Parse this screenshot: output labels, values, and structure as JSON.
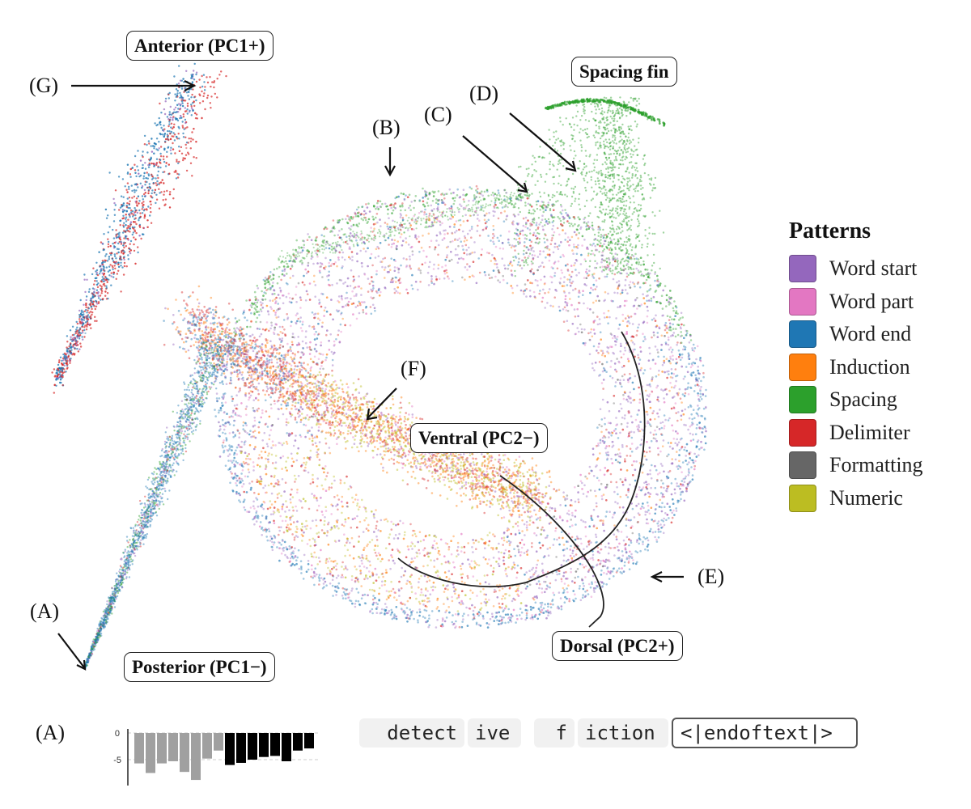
{
  "labels": {
    "anterior": "Anterior (PC1+)",
    "posterior": "Posterior (PC1−)",
    "spacing_fin": "Spacing fin",
    "ventral": "Ventral (PC2−)",
    "dorsal": "Dorsal (PC2+)"
  },
  "letters": {
    "A": "(A)",
    "B": "(B)",
    "C": "(C)",
    "D": "(D)",
    "E": "(E)",
    "F": "(F)",
    "G": "(G)",
    "panel_A": "(A)"
  },
  "legend": {
    "title": "Patterns",
    "items": [
      {
        "label": "Word start",
        "color": "#9467bd"
      },
      {
        "label": "Word part",
        "color": "#e377c2"
      },
      {
        "label": "Word end",
        "color": "#1f77b4"
      },
      {
        "label": "Induction",
        "color": "#ff7f0e"
      },
      {
        "label": "Spacing",
        "color": "#2ca02c"
      },
      {
        "label": "Delimiter",
        "color": "#d62728"
      },
      {
        "label": "Formatting",
        "color": "#666666"
      },
      {
        "label": "Numeric",
        "color": "#bcbd22"
      }
    ]
  },
  "bar_chart": {
    "ytick_labels": [
      "0",
      "-5"
    ],
    "values": [
      -5.7,
      -7.5,
      -5.7,
      -5.3,
      -7.3,
      -8.8,
      -4.8,
      -3.3,
      -6.0,
      -5.6,
      -5.0,
      -4.5,
      -4.3,
      -5.3,
      -3.3,
      -2.9
    ],
    "dark_from_index": 8,
    "colors": {
      "light": "#a0a0a0",
      "dark": "#000000"
    },
    "ylim": [
      -9.5,
      0
    ]
  },
  "tokens": [
    {
      "text": "detect"
    },
    {
      "text": "ive"
    },
    {
      "text": "f"
    },
    {
      "text": "iction"
    },
    {
      "text": "<|endoftext|>"
    }
  ]
}
